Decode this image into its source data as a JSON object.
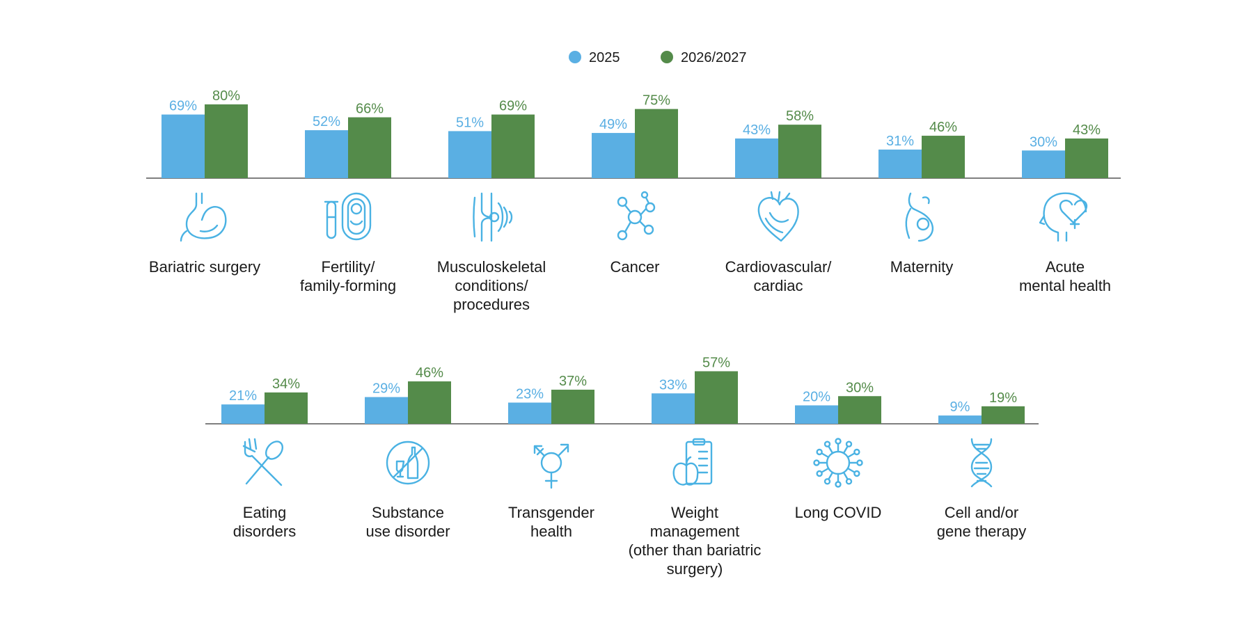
{
  "colors": {
    "series_2025": "#5aafe3",
    "series_2026": "#548b4a",
    "icon": "#4ab2e3",
    "axis": "#555555"
  },
  "chart_data": {
    "type": "bar",
    "legend": {
      "placement": "top-center",
      "entries": [
        "2025",
        "2026/2027"
      ]
    },
    "value_suffix": "%",
    "ylim": [
      0,
      100
    ],
    "grid": false,
    "rows": [
      {
        "categories": [
          {
            "label": [
              "Bariatric surgery"
            ],
            "icon": "stomach-icon"
          },
          {
            "label": [
              "Fertility/",
              "family-forming"
            ],
            "icon": "fertility-icon"
          },
          {
            "label": [
              "Musculoskeletal",
              "conditions/",
              "procedures"
            ],
            "icon": "joint-icon"
          },
          {
            "label": [
              "Cancer"
            ],
            "icon": "cell-network-icon"
          },
          {
            "label": [
              "Cardiovascular/",
              "cardiac"
            ],
            "icon": "heart-icon"
          },
          {
            "label": [
              "Maternity"
            ],
            "icon": "pregnancy-icon"
          },
          {
            "label": [
              "Acute",
              "mental health"
            ],
            "icon": "mental-health-icon"
          }
        ],
        "series": [
          {
            "name": "2025",
            "values": [
              69,
              52,
              51,
              49,
              43,
              31,
              30
            ]
          },
          {
            "name": "2026/2027",
            "values": [
              80,
              66,
              69,
              75,
              58,
              46,
              43
            ]
          }
        ]
      },
      {
        "categories": [
          {
            "label": [
              "Eating",
              "disorders"
            ],
            "icon": "fork-spoon-icon"
          },
          {
            "label": [
              "Substance",
              "use disorder"
            ],
            "icon": "no-alcohol-icon"
          },
          {
            "label": [
              "Transgender",
              "health"
            ],
            "icon": "transgender-icon"
          },
          {
            "label": [
              "Weight",
              "management",
              "(other than bariatric",
              "surgery)"
            ],
            "icon": "apple-clipboard-icon"
          },
          {
            "label": [
              "Long COVID"
            ],
            "icon": "virus-icon"
          },
          {
            "label": [
              "Cell and/or",
              "gene therapy"
            ],
            "icon": "dna-icon"
          }
        ],
        "series": [
          {
            "name": "2025",
            "values": [
              21,
              29,
              23,
              33,
              20,
              9
            ]
          },
          {
            "name": "2026/2027",
            "values": [
              34,
              46,
              37,
              57,
              30,
              19
            ]
          }
        ]
      }
    ]
  }
}
